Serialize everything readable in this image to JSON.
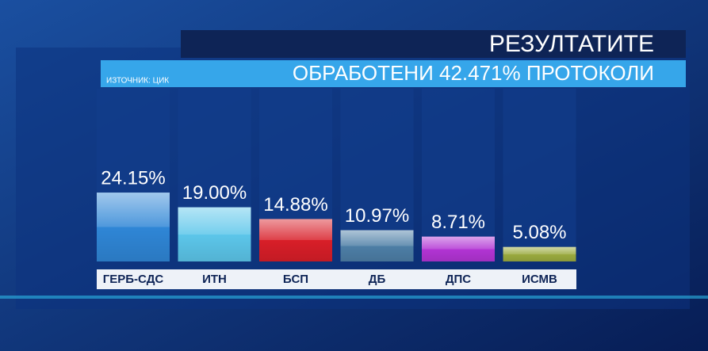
{
  "chart_data": {
    "type": "bar",
    "title": "РЕЗУЛТАТИТЕ",
    "subtitle": "ОБРАБОТЕНИ 42.471% ПРОТОКОЛИ",
    "source": "ИЗТОЧНИК: ЦИК",
    "categories": [
      "ГЕРБ-СДС",
      "ИТН",
      "БСП",
      "ДБ",
      "ДПС",
      "ИСМВ"
    ],
    "values": [
      24.15,
      19.0,
      14.88,
      10.97,
      8.71,
      5.08
    ],
    "value_labels": [
      "24.15%",
      "19.00%",
      "14.88%",
      "10.97%",
      "8.71%",
      "5.08%"
    ],
    "colors": [
      "#2f86d6",
      "#5cc6ea",
      "#d81e28",
      "#4d7ea6",
      "#b234d4",
      "#9aaa3e"
    ]
  }
}
